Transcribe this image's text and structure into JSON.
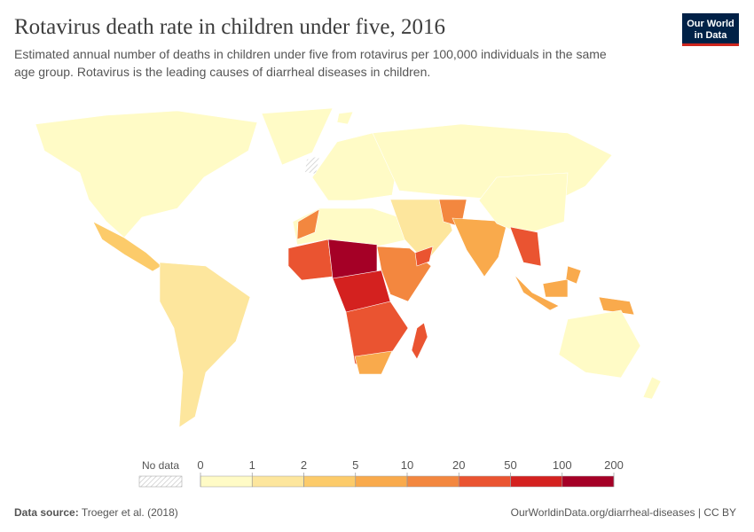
{
  "header": {
    "title": "Rotavirus death rate in children under five, 2016",
    "subtitle": [
      "Estimated annual number of deaths in children under five from rotavirus per 100,000 individuals in the same",
      "age group. Rotavirus is the leading causes of diarrheal diseases in children."
    ]
  },
  "logo": [
    "Our World",
    "in Data"
  ],
  "legend": {
    "no_data": "No data",
    "ticks": [
      0,
      1,
      2,
      5,
      10,
      20,
      50,
      100,
      200
    ],
    "colors": [
      "#fffbc6",
      "#fde69d",
      "#fccb6a",
      "#f9aa4c",
      "#f3873f",
      "#ea5431",
      "#d4211f",
      "#a50026"
    ]
  },
  "footer": {
    "source_label": "Data source:",
    "source": "Troeger et al. (2018)",
    "url": "OurWorldinData.org/diarrheal-diseases | CC BY"
  }
}
